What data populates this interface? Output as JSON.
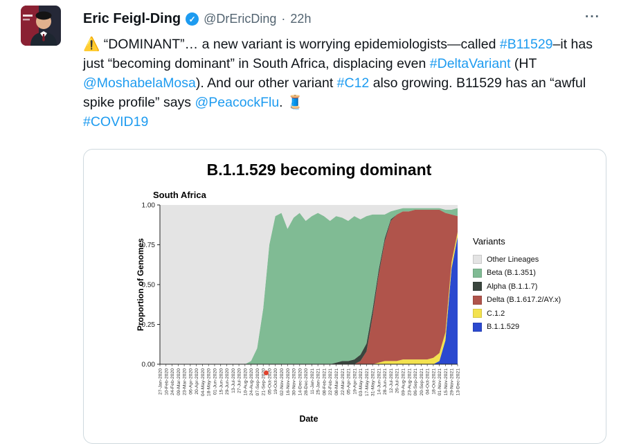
{
  "tweet": {
    "author": {
      "name": "Eric Feigl-Ding",
      "verified_glyph": "✓",
      "handle": "@DrEricDing",
      "separator": "·",
      "time": "22h"
    },
    "more_label": "···",
    "segments": [
      {
        "type": "emoji",
        "name": "warning-icon",
        "text": "⚠️"
      },
      {
        "type": "text",
        "text": " “DOMINANT”… a new variant is worrying epidemiologists—called "
      },
      {
        "type": "link",
        "text": "#B11529"
      },
      {
        "type": "text",
        "text": "–it has just “becoming dominant” in South Africa, displacing even "
      },
      {
        "type": "link",
        "text": "#DeltaVariant"
      },
      {
        "type": "text",
        "text": " (HT "
      },
      {
        "type": "link",
        "text": "@MoshabelaMosa"
      },
      {
        "type": "text",
        "text": "). And our other variant "
      },
      {
        "type": "link",
        "text": "#C12"
      },
      {
        "type": "text",
        "text": " also growing. B11529 has an “awful spike profile” says "
      },
      {
        "type": "link",
        "text": "@PeacockFlu"
      },
      {
        "type": "text",
        "text": ". "
      },
      {
        "type": "emoji",
        "name": "thread-icon",
        "text": "🧵"
      },
      {
        "type": "break"
      },
      {
        "type": "link",
        "text": "#COVID19"
      }
    ]
  },
  "chart_data": {
    "type": "area",
    "title": "B.1.1.529 becoming dominant",
    "subtitle": "South Africa",
    "xlabel": "Date",
    "ylabel": "Proportion of Genomes",
    "legend_title": "Variants",
    "legend_position": "right",
    "ylim": [
      0,
      1
    ],
    "yticks": [
      "0.00",
      "0.25",
      "0.50",
      "0.75",
      "1.00"
    ],
    "panel_color": "#ebebeb",
    "x": [
      "27-Jan-2020",
      "10-Feb-2020",
      "24-Feb-2020",
      "09-Mar-2020",
      "23-Mar-2020",
      "06-Apr-2020",
      "20-Apr-2020",
      "04-May-2020",
      "18-May-2020",
      "01-Jun-2020",
      "15-Jun-2020",
      "29-Jun-2020",
      "13-Jul-2020",
      "27-Jul-2020",
      "10-Aug-2020",
      "24-Aug-2020",
      "07-Sep-2020",
      "21-Sep-2020",
      "05-Oct-2020",
      "19-Oct-2020",
      "02-Nov-2020",
      "16-Nov-2020",
      "30-Nov-2020",
      "14-Dec-2020",
      "28-Dec-2020",
      "11-Jan-2021",
      "25-Jan-2021",
      "08-Feb-2021",
      "22-Feb-2021",
      "08-Mar-2021",
      "22-Mar-2021",
      "05-Apr-2021",
      "19-Apr-2021",
      "03-May-2021",
      "17-May-2021",
      "31-May-2021",
      "14-Jun-2021",
      "28-Jun-2021",
      "12-Jul-2021",
      "26-Jul-2021",
      "09-Aug-2021",
      "23-Aug-2021",
      "06-Sep-2021",
      "20-Sep-2021",
      "04-Oct-2021",
      "18-Oct-2021",
      "01-Nov-2021",
      "15-Nov-2021",
      "29-Nov-2021",
      "13-Dec-2021"
    ],
    "series": [
      {
        "name": "Other Lineages",
        "color": "#e4e4e4",
        "values": [
          1,
          1,
          1,
          1,
          1,
          1,
          1,
          1,
          1,
          1,
          1,
          1,
          1,
          1,
          1,
          0.98,
          0.9,
          0.65,
          0.25,
          0.07,
          0.05,
          0.15,
          0.08,
          0.05,
          0.1,
          0.07,
          0.05,
          0.07,
          0.1,
          0.07,
          0.08,
          0.1,
          0.07,
          0.09,
          0.07,
          0.06,
          0.06,
          0.06,
          0.04,
          0.03,
          0.02,
          0.02,
          0.02,
          0.02,
          0.02,
          0.02,
          0.02,
          0.03,
          0.03,
          0.02
        ]
      },
      {
        "name": "Beta (B.1.351)",
        "color": "#80bb94",
        "values": [
          0,
          0,
          0,
          0,
          0,
          0,
          0,
          0,
          0,
          0,
          0,
          0,
          0,
          0,
          0,
          0.02,
          0.1,
          0.35,
          0.75,
          0.93,
          0.95,
          0.85,
          0.92,
          0.95,
          0.9,
          0.93,
          0.95,
          0.93,
          0.9,
          0.92,
          0.9,
          0.88,
          0.9,
          0.85,
          0.8,
          0.6,
          0.35,
          0.15,
          0.05,
          0.03,
          0.02,
          0.02,
          0.01,
          0.01,
          0.01,
          0.01,
          0.01,
          0.02,
          0.03,
          0.05
        ]
      },
      {
        "name": "Alpha (B.1.1.7)",
        "color": "#3a453e",
        "values": [
          0,
          0,
          0,
          0,
          0,
          0,
          0,
          0,
          0,
          0,
          0,
          0,
          0,
          0,
          0,
          0,
          0,
          0,
          0,
          0,
          0,
          0,
          0,
          0,
          0,
          0,
          0,
          0,
          0,
          0.01,
          0.02,
          0.02,
          0.03,
          0.04,
          0.05,
          0.04,
          0.03,
          0.02,
          0.01,
          0,
          0,
          0,
          0,
          0,
          0,
          0,
          0,
          0,
          0,
          0
        ]
      },
      {
        "name": "Delta (B.1.617.2/AY.x)",
        "color": "#b0544b",
        "values": [
          0,
          0,
          0,
          0,
          0,
          0,
          0,
          0,
          0,
          0,
          0,
          0,
          0,
          0,
          0,
          0,
          0,
          0,
          0,
          0,
          0,
          0,
          0,
          0,
          0,
          0,
          0,
          0,
          0,
          0,
          0,
          0,
          0,
          0.02,
          0.08,
          0.3,
          0.55,
          0.75,
          0.88,
          0.92,
          0.93,
          0.93,
          0.94,
          0.94,
          0.94,
          0.93,
          0.9,
          0.75,
          0.3,
          0.1
        ]
      },
      {
        "name": "C.1.2",
        "color": "#f3e24e",
        "values": [
          0,
          0,
          0,
          0,
          0,
          0,
          0,
          0,
          0,
          0,
          0,
          0,
          0,
          0,
          0,
          0,
          0,
          0,
          0,
          0,
          0,
          0,
          0,
          0,
          0,
          0,
          0,
          0,
          0,
          0,
          0,
          0,
          0,
          0,
          0,
          0,
          0.01,
          0.02,
          0.02,
          0.02,
          0.03,
          0.03,
          0.03,
          0.03,
          0.03,
          0.04,
          0.05,
          0.05,
          0.04,
          0.03
        ]
      },
      {
        "name": "B.1.1.529",
        "color": "#2b49cf",
        "values": [
          0,
          0,
          0,
          0,
          0,
          0,
          0,
          0,
          0,
          0,
          0,
          0,
          0,
          0,
          0,
          0,
          0,
          0,
          0,
          0,
          0,
          0,
          0,
          0,
          0,
          0,
          0,
          0,
          0,
          0,
          0,
          0,
          0,
          0,
          0,
          0,
          0,
          0,
          0,
          0,
          0,
          0,
          0,
          0,
          0,
          0,
          0.02,
          0.15,
          0.6,
          0.8
        ]
      }
    ],
    "stack_order_bottom_to_top": [
      "B.1.1.529",
      "C.1.2",
      "Delta (B.1.617.2/AY.x)",
      "Alpha (B.1.1.7)",
      "Beta (B.1.351)",
      "Other Lineages"
    ]
  }
}
